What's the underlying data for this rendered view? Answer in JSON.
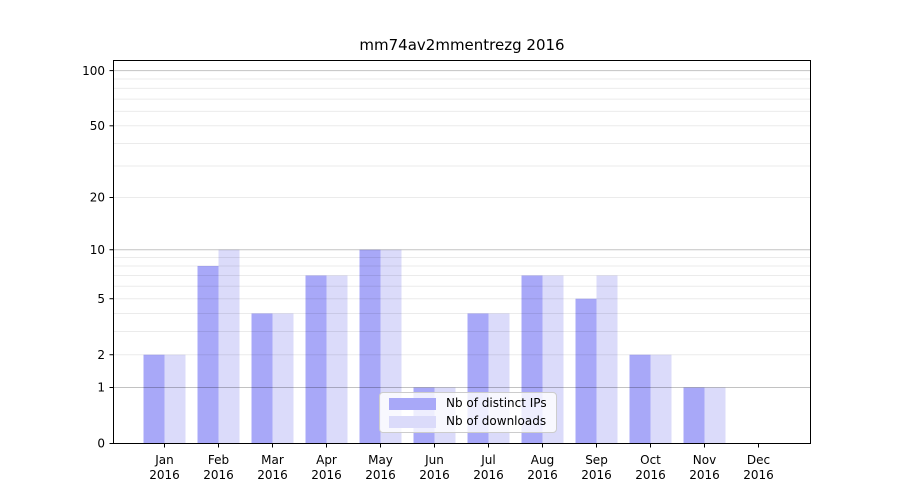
{
  "chart_data": {
    "type": "bar",
    "title": "mm74av2mmentrezg 2016",
    "x_months": [
      "Jan",
      "Feb",
      "Mar",
      "Apr",
      "May",
      "Jun",
      "Jul",
      "Aug",
      "Sep",
      "Oct",
      "Nov",
      "Dec"
    ],
    "x_year": "2016",
    "series": [
      {
        "name": "Nb of distinct IPs",
        "color": "#a8a8f8",
        "values": [
          2,
          8,
          4,
          7,
          10,
          1,
          4,
          7,
          5,
          2,
          1,
          0
        ]
      },
      {
        "name": "Nb of downloads",
        "color": "#dbdbfa",
        "values": [
          2,
          10,
          4,
          7,
          10,
          1,
          4,
          7,
          7,
          2,
          1,
          0
        ]
      }
    ],
    "yscale": "log1p",
    "ylim": [
      0,
      113
    ],
    "yticks": [
      100,
      50,
      20,
      10,
      5,
      2,
      1,
      0
    ],
    "major_gridlines": [
      1,
      10,
      100
    ],
    "minor_gridlines": [
      2,
      3,
      4,
      5,
      6,
      7,
      8,
      9,
      20,
      30,
      40,
      50,
      60,
      70,
      80,
      90
    ],
    "grid": "on",
    "legend_position": "lower-center-inside"
  },
  "colors": {
    "background": "#ffffff",
    "axis": "#000000",
    "grid_minor": "rgba(0,0,0,0.08)",
    "grid_major": "rgba(0,0,0,0.24)",
    "tick_text": "#000000"
  }
}
